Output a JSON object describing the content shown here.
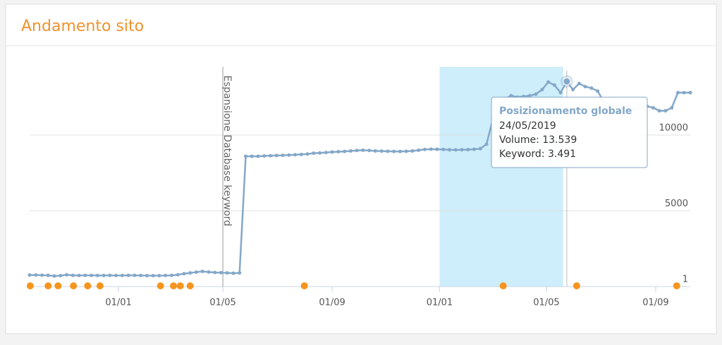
{
  "header": {
    "title": "Andamento sito"
  },
  "chart_data": {
    "type": "line",
    "series": [
      {
        "name": "Posizionamento globale",
        "color": "#84a7c9",
        "values": [
          760,
          760,
          750,
          740,
          700,
          720,
          780,
          740,
          730,
          740,
          740,
          730,
          730,
          740,
          730,
          730,
          740,
          740,
          730,
          720,
          720,
          720,
          730,
          740,
          780,
          850,
          900,
          950,
          1000,
          960,
          930,
          920,
          900,
          880,
          900,
          8600,
          8600,
          8600,
          8620,
          8640,
          8650,
          8660,
          8680,
          8700,
          8720,
          8750,
          8800,
          8820,
          8850,
          8880,
          8900,
          8920,
          8950,
          8980,
          9000,
          8980,
          8950,
          8940,
          8930,
          8920,
          8920,
          8930,
          8950,
          9000,
          9050,
          9070,
          9060,
          9050,
          9030,
          9020,
          9030,
          9040,
          9060,
          9100,
          9400,
          11000,
          11500,
          12400,
          12600,
          12500,
          12550,
          12600,
          12700,
          13000,
          13500,
          13300,
          12800,
          13539,
          13000,
          13400,
          13200,
          13100,
          12900,
          12200,
          12000,
          11900,
          11800,
          11800,
          11700,
          11800,
          11900,
          11800,
          11600,
          11600,
          11800,
          12800,
          12800,
          12800
        ]
      }
    ],
    "xlim": [
      0,
      107
    ],
    "xticks": [
      {
        "value": 14.4,
        "label": "01/01"
      },
      {
        "value": 31.3,
        "label": "01/05"
      },
      {
        "value": 49,
        "label": "01/09"
      },
      {
        "value": 66.4,
        "label": "01/01"
      },
      {
        "value": 83.7,
        "label": "01/05"
      },
      {
        "value": 101.4,
        "label": "01/09"
      }
    ],
    "ylim": [
      0,
      14500
    ],
    "yticks": [
      1,
      5000,
      10000
    ],
    "grid": true,
    "annotation": {
      "x": 31.3,
      "text": "Espansione Database keyword"
    },
    "highlight_band": [
      66.4,
      86.4
    ],
    "event_markers": {
      "color": "#f7941d",
      "x": [
        0.1,
        3,
        4.6,
        7.1,
        9.4,
        11.4,
        21.2,
        23.3,
        24.4,
        26,
        44.5,
        76.7,
        88.6,
        104.8
      ]
    },
    "tooltip": {
      "title": "Posizionamento globale",
      "date": "24/05/2019",
      "volume": "Volume: 13.539",
      "keyword": "Keyword: 3.491"
    }
  }
}
